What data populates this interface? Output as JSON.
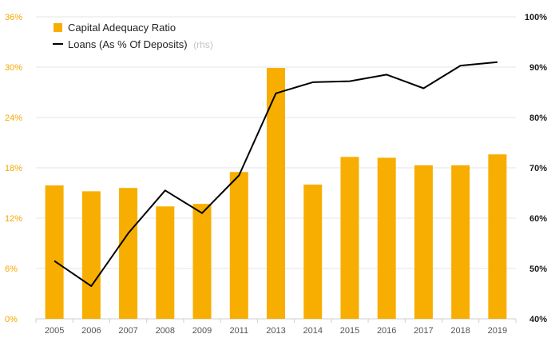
{
  "chart_data": {
    "type": "bar",
    "categories": [
      "2005",
      "2006",
      "2007",
      "2008",
      "2009",
      "2011",
      "2013",
      "2014",
      "2015",
      "2016",
      "2017",
      "2018",
      "2019"
    ],
    "series": [
      {
        "name": "Capital Adequacy Ratio",
        "type": "bar",
        "axis": "left",
        "color": "#F7AE00",
        "values": [
          15.9,
          15.2,
          15.6,
          13.4,
          13.7,
          17.5,
          29.9,
          16.0,
          19.3,
          19.2,
          18.3,
          18.3,
          19.6
        ]
      },
      {
        "name": "Loans (As % Of Deposits)",
        "type": "line",
        "axis": "right",
        "color": "#000000",
        "values": [
          51.5,
          46.5,
          57.0,
          65.5,
          61.0,
          68.5,
          84.8,
          87.0,
          87.2,
          88.5,
          85.8,
          90.3,
          91.0
        ]
      }
    ],
    "legend": {
      "position": "top-left",
      "entries": [
        "Capital Adequacy Ratio",
        "Loans (As % Of Deposits)"
      ],
      "suffix": "(rhs)"
    },
    "left_axis": {
      "ylim": [
        0,
        36
      ],
      "ticks": [
        "0%",
        "6%",
        "12%",
        "18%",
        "24%",
        "30%",
        "36%"
      ]
    },
    "right_axis": {
      "ylim": [
        40,
        100
      ],
      "ticks": [
        "40%",
        "50%",
        "60%",
        "70%",
        "80%",
        "90%",
        "100%"
      ]
    },
    "grid": true
  }
}
